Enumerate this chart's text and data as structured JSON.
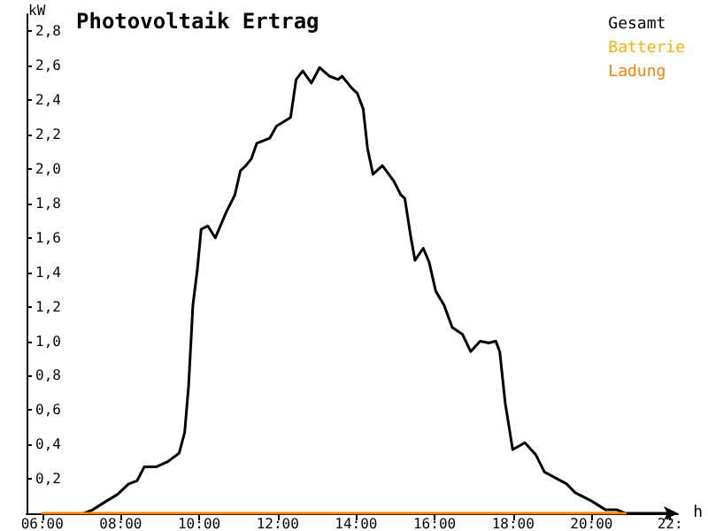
{
  "chart_data": {
    "type": "line",
    "title": "Photovoltaik Ertrag",
    "xlabel": "h",
    "ylabel": "kW",
    "xlim": [
      5.6,
      22.2
    ],
    "xticks": [
      {
        "value": 6,
        "label": "06:00"
      },
      {
        "value": 8,
        "label": "08:00"
      },
      {
        "value": 10,
        "label": "10:00"
      },
      {
        "value": 12,
        "label": "12:00"
      },
      {
        "value": 14,
        "label": "14:00"
      },
      {
        "value": 16,
        "label": "16:00"
      },
      {
        "value": 18,
        "label": "18:00"
      },
      {
        "value": 20,
        "label": "20:00"
      },
      {
        "value": 22,
        "label": "22:"
      }
    ],
    "ylim": [
      0,
      2.9
    ],
    "yticks": [
      {
        "value": 0.2,
        "label": "0,2"
      },
      {
        "value": 0.4,
        "label": "0,4"
      },
      {
        "value": 0.6,
        "label": "0,6"
      },
      {
        "value": 0.8,
        "label": "0,8"
      },
      {
        "value": 1.0,
        "label": "1,0"
      },
      {
        "value": 1.2,
        "label": "1,2"
      },
      {
        "value": 1.4,
        "label": "1,4"
      },
      {
        "value": 1.6,
        "label": "1,6"
      },
      {
        "value": 1.8,
        "label": "1,8"
      },
      {
        "value": 2.0,
        "label": "2,0"
      },
      {
        "value": 2.2,
        "label": "2,2"
      },
      {
        "value": 2.4,
        "label": "2,4"
      },
      {
        "value": 2.6,
        "label": "2,6"
      },
      {
        "value": 2.8,
        "label": "2,8"
      }
    ],
    "grid": false,
    "legend": "top right",
    "marker": "none",
    "line_style": "solid",
    "series": [
      {
        "name": "Gesamt",
        "color": "#000000",
        "x": [
          7.07,
          7.28,
          7.63,
          7.92,
          8.2,
          8.42,
          8.6,
          8.91,
          9.2,
          9.49,
          9.63,
          9.73,
          9.84,
          9.95,
          10.05,
          10.22,
          10.41,
          10.69,
          10.91,
          11.05,
          11.19,
          11.33,
          11.47,
          11.8,
          11.97,
          12.33,
          12.47,
          12.64,
          12.86,
          13.07,
          13.32,
          13.54,
          13.64,
          13.89,
          14.03,
          14.18,
          14.29,
          14.43,
          14.67,
          14.96,
          15.14,
          15.24,
          15.39,
          15.5,
          15.71,
          15.86,
          16.03,
          16.24,
          16.45,
          16.71,
          16.92,
          17.16,
          17.38,
          17.56,
          17.66,
          17.8,
          17.99,
          18.3,
          18.58,
          18.8,
          19.37,
          19.58,
          20.01,
          20.36,
          20.65,
          20.86,
          22
        ],
        "values": [
          0,
          0.02,
          0.07,
          0.11,
          0.17,
          0.19,
          0.27,
          0.27,
          0.3,
          0.35,
          0.47,
          0.74,
          1.21,
          1.41,
          1.65,
          1.67,
          1.6,
          1.75,
          1.85,
          1.99,
          2.02,
          2.06,
          2.15,
          2.18,
          2.25,
          2.3,
          2.52,
          2.57,
          2.5,
          2.59,
          2.54,
          2.52,
          2.54,
          2.47,
          2.44,
          2.35,
          2.12,
          1.97,
          2.02,
          1.93,
          1.85,
          1.83,
          1.61,
          1.47,
          1.54,
          1.46,
          1.29,
          1.21,
          1.08,
          1.04,
          0.94,
          1.0,
          0.99,
          1.0,
          0.94,
          0.64,
          0.37,
          0.41,
          0.34,
          0.24,
          0.17,
          0.12,
          0.07,
          0.02,
          0.02,
          0,
          0
        ]
      },
      {
        "name": "Batterie",
        "color": "#ffb000"
      },
      {
        "name": "Ladung",
        "color": "#ff8000",
        "x": [
          6,
          20.86
        ],
        "values": [
          0,
          0
        ]
      }
    ]
  }
}
